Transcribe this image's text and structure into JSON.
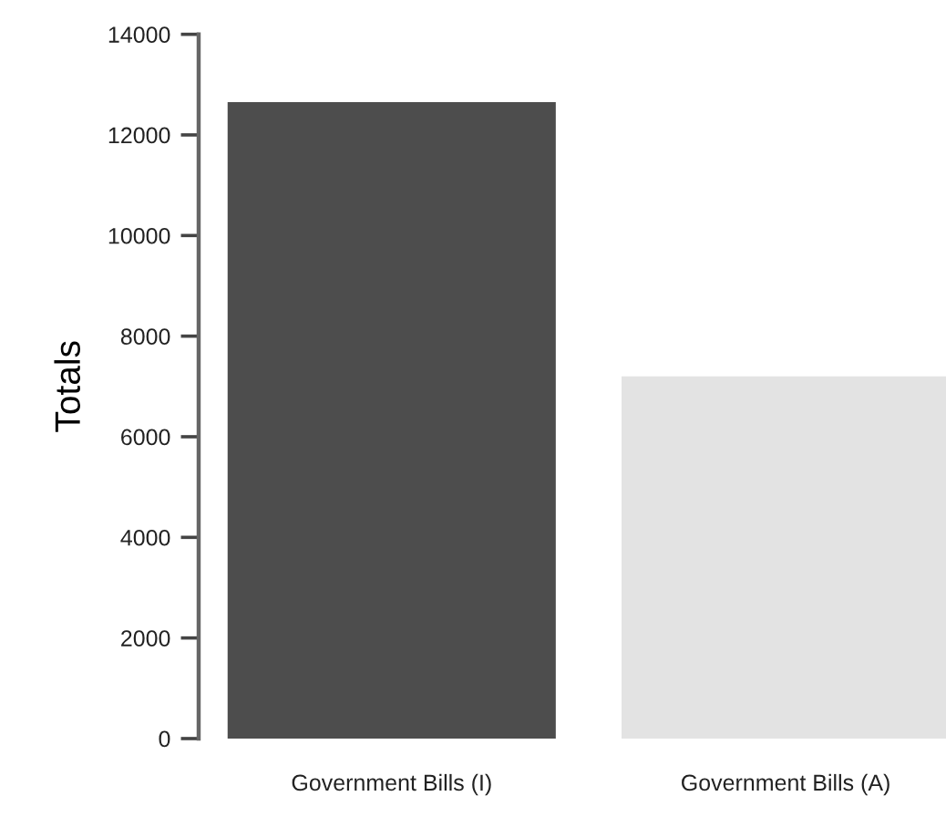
{
  "chart_data": {
    "type": "bar",
    "ylabel": "Totals",
    "categories": [
      "Government Bills (I)",
      "Government Bills (A)"
    ],
    "values": [
      12650,
      7200
    ],
    "colors": [
      "#4d4d4d",
      "#e3e3e3"
    ],
    "ylim": [
      0,
      14000
    ],
    "yticks": [
      0,
      2000,
      4000,
      6000,
      8000,
      10000,
      12000,
      14000
    ],
    "grid": false,
    "legend": false
  }
}
